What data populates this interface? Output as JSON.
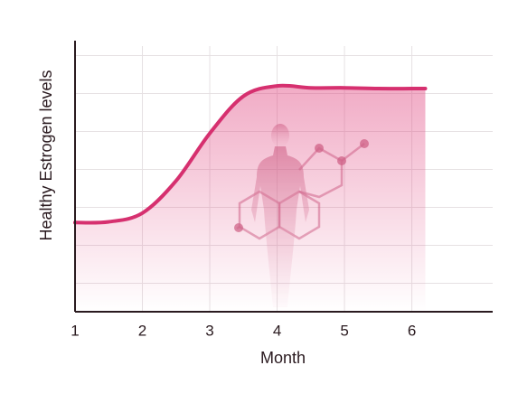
{
  "chart_data": {
    "type": "line",
    "x_label": "Month",
    "y_label": "Healthy Estrogen levels",
    "x": [
      1,
      1.5,
      2,
      2.5,
      3,
      3.5,
      4,
      4.5,
      5,
      5.5,
      6,
      6.2
    ],
    "series": [
      {
        "color": "#d6306f",
        "values": [
          2.35,
          2.37,
          2.6,
          3.45,
          4.7,
          5.68,
          5.95,
          5.9,
          5.9,
          5.88,
          5.88,
          5.88
        ]
      }
    ],
    "xlim": [
      1,
      7.2
    ],
    "xticks": [
      1,
      2,
      3,
      4,
      5,
      6
    ],
    "ylim": [
      0,
      7
    ],
    "ygrid": [
      0.75,
      1.75,
      2.75,
      3.75,
      4.75,
      5.75,
      6.75
    ],
    "grid": true
  }
}
